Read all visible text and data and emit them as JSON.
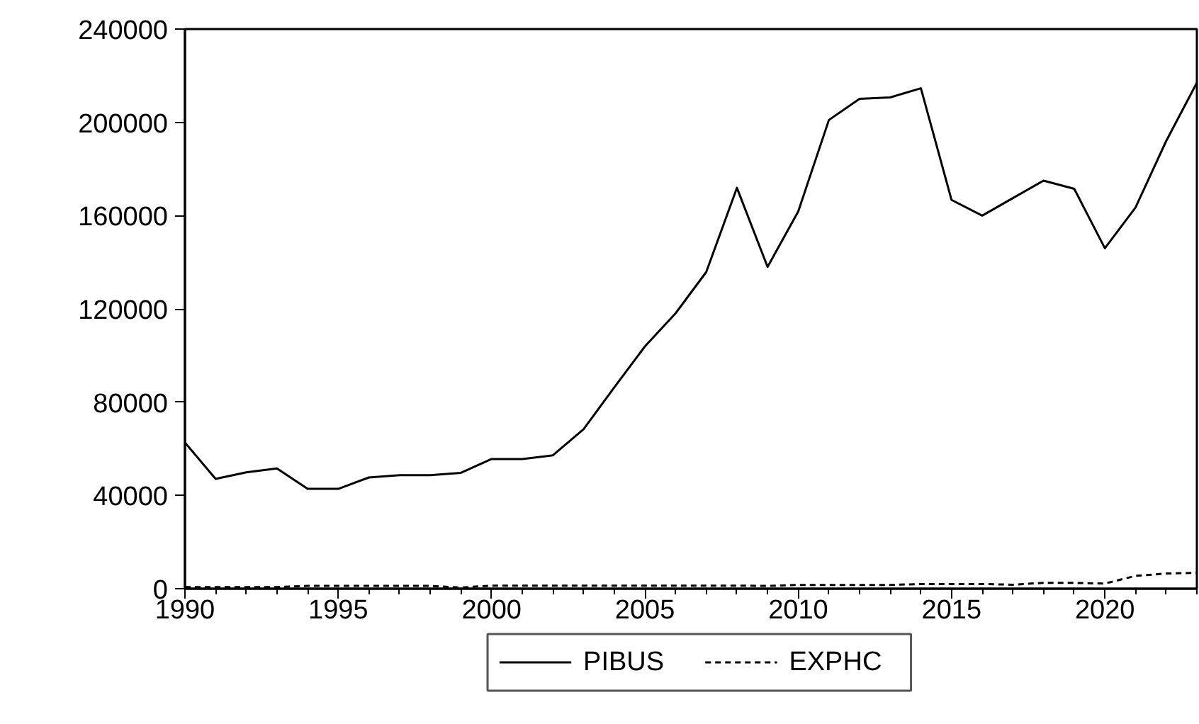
{
  "chart_data": {
    "type": "line",
    "x": [
      1990,
      1991,
      1992,
      1993,
      1994,
      1995,
      1996,
      1997,
      1998,
      1999,
      2000,
      2001,
      2002,
      2003,
      2004,
      2005,
      2006,
      2007,
      2008,
      2009,
      2010,
      2011,
      2012,
      2013,
      2014,
      2015,
      2016,
      2017,
      2018,
      2019,
      2020,
      2021,
      2022,
      2023
    ],
    "series": [
      {
        "name": "PIBUS",
        "color": "#000000",
        "line_style": "solid",
        "values": [
          62700,
          47100,
          49900,
          51600,
          42800,
          42800,
          47700,
          48700,
          48700,
          49700,
          55600,
          55600,
          57200,
          68400,
          86300,
          103900,
          118100,
          135800,
          171900,
          138000,
          161800,
          201000,
          210100,
          210700,
          214600,
          166700,
          160000,
          167500,
          175000,
          171500,
          146000,
          163500,
          192000,
          217000
        ]
      },
      {
        "name": "EXPHC",
        "color": "#000000",
        "line_style": "dashed",
        "values": [
          700,
          700,
          700,
          700,
          1200,
          1200,
          1200,
          1200,
          1200,
          500,
          1300,
          1300,
          1300,
          1300,
          1300,
          1300,
          1300,
          1300,
          1300,
          1200,
          1600,
          1600,
          1600,
          1600,
          2000,
          2000,
          2000,
          1700,
          2500,
          2500,
          2200,
          5500,
          6500,
          6800
        ]
      }
    ],
    "xlim": [
      1990,
      2023
    ],
    "xticks": [
      1990,
      1995,
      2000,
      2005,
      2010,
      2015,
      2020
    ],
    "ylim": [
      0,
      240000
    ],
    "yticks": [
      0,
      40000,
      80000,
      120000,
      160000,
      200000,
      240000
    ],
    "grid": false,
    "legend": "bottom",
    "marker": "none"
  }
}
